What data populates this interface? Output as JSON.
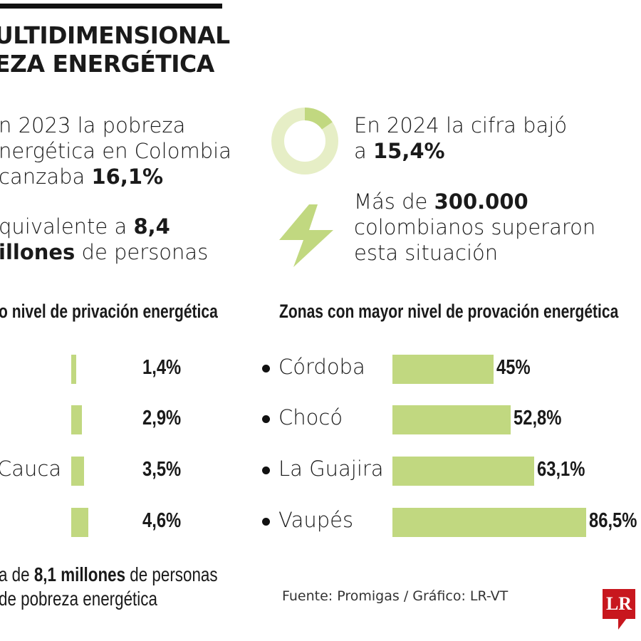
{
  "title": {
    "line1": "ULTIDIMENSIONAL",
    "line2": "EZA ENERGÉTICA"
  },
  "facts": {
    "f2023": {
      "pre": "n 2023 la pobreza",
      "mid": "nergética en Colombia",
      "post": "canzaba ",
      "value": "16,1%"
    },
    "equiv": {
      "pre": "quivalente a ",
      "value": "8,4",
      "bold2": "illones",
      "post": " de personas"
    },
    "f2024": {
      "line1": "En 2024 la cifra bajó",
      "pre": "a ",
      "value": "15,4%"
    },
    "overcome": {
      "pre": "Más de ",
      "value": "300.000",
      "line2": "colombianos superaron",
      "line3": "esta situación"
    }
  },
  "donut": {
    "value_percent": 15.4,
    "fill_color": "#c1d880",
    "track_color": "#e6eec6"
  },
  "icons": {
    "bolt": "lightning-bolt-icon",
    "donut": "donut-chart-icon"
  },
  "chart_data": [
    {
      "type": "bar",
      "title": "o nivel de privación energética",
      "categories": [
        "",
        "",
        "Cauca",
        ""
      ],
      "values": [
        1.4,
        2.9,
        3.5,
        4.6
      ],
      "value_labels": [
        "1,4%",
        "2,9%",
        "3,5%",
        "4,6%"
      ],
      "orientation": "horizontal",
      "color": "#c1d880"
    },
    {
      "type": "bar",
      "title": "Zonas con mayor nivel de provación energética",
      "categories": [
        "Córdoba",
        "Chocó",
        "La Guajira",
        "Vaupés"
      ],
      "values": [
        45,
        52.8,
        63.1,
        86.5
      ],
      "value_labels": [
        "45%",
        "52,8%",
        "63,1%",
        "86,5%"
      ],
      "orientation": "horizontal",
      "color": "#c1d880"
    }
  ],
  "footer": {
    "pre": "a de ",
    "value": "8,1 millones",
    "post": " de personas",
    "line2": "de pobreza energética"
  },
  "source": "Fuente: Promigas / Gráfico: LR-VT",
  "logo": "LR"
}
